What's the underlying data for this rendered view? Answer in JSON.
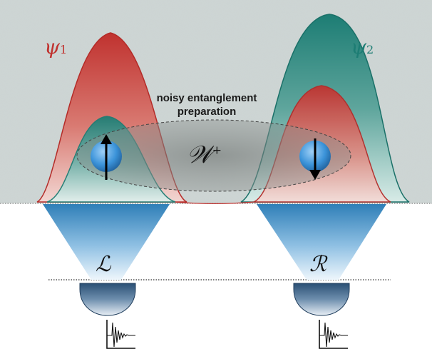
{
  "diagram": {
    "caption_line1": "noisy entanglement",
    "caption_line2": "preparation",
    "state_label_main": "𝒲",
    "state_label_sup": "+",
    "left_wave": {
      "symbol": "ψ",
      "index": "1"
    },
    "right_wave": {
      "symbol": "ψ",
      "index": "2"
    },
    "left_detector_label": "ℒ",
    "right_detector_label": "ℛ",
    "spin_left": "up",
    "spin_right": "down"
  },
  "colors": {
    "red_wave": "#c0322f",
    "teal_wave": "#1d7d74",
    "beam_top": "#2f7fb8",
    "detector_dark": "#2a4f74",
    "spin_ball": "#3b93d9",
    "noise_background": "#b9c4c1"
  }
}
